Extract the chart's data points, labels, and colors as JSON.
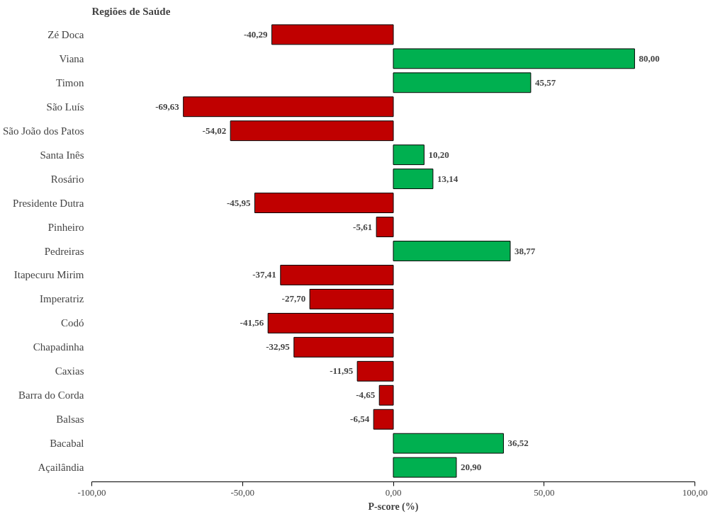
{
  "chart_data": {
    "type": "bar",
    "orientation": "horizontal",
    "ylabel": "Regiões de Saúde",
    "xlabel": "P-score (%)",
    "categories": [
      "Zé Doca",
      "Viana",
      "Timon",
      "São Luís",
      "São João dos Patos",
      "Santa Inês",
      "Rosário",
      "Presidente Dutra",
      "Pinheiro",
      "Pedreiras",
      "Itapecuru Mirim",
      "Imperatriz",
      "Codó",
      "Chapadinha",
      "Caxias",
      "Barra do Corda",
      "Balsas",
      "Bacabal",
      "Açailândia"
    ],
    "values": [
      -40.29,
      80.0,
      45.57,
      -69.63,
      -54.02,
      10.2,
      13.14,
      -45.95,
      -5.61,
      38.77,
      -37.41,
      -27.7,
      -41.56,
      -32.95,
      -11.95,
      -4.65,
      -6.54,
      36.52,
      20.9
    ],
    "value_labels": [
      "-40,29",
      "80,00",
      "45,57",
      "-69,63",
      "-54,02",
      "10,20",
      "13,14",
      "-45,95",
      "-5,61",
      "38,77",
      "-37,41",
      "-27,70",
      "-41,56",
      "-32,95",
      "-11,95",
      "-4,65",
      "-6,54",
      "36,52",
      "20,90"
    ],
    "colors": [
      "#c00000",
      "#00b050",
      "#00b050",
      "#c00000",
      "#c00000",
      "#00b050",
      "#00b050",
      "#c00000",
      "#c00000",
      "#00b050",
      "#c00000",
      "#c00000",
      "#c00000",
      "#c00000",
      "#c00000",
      "#c00000",
      "#c00000",
      "#00b050",
      "#00b050"
    ],
    "xlim": [
      -100,
      100
    ],
    "xticks": [
      {
        "value": -100,
        "label": "-100,00"
      },
      {
        "value": -50,
        "label": "-50,00"
      },
      {
        "value": 0,
        "label": "0,00"
      },
      {
        "value": 50,
        "label": "50,00"
      },
      {
        "value": 100,
        "label": "100,00"
      }
    ],
    "grid": false
  }
}
